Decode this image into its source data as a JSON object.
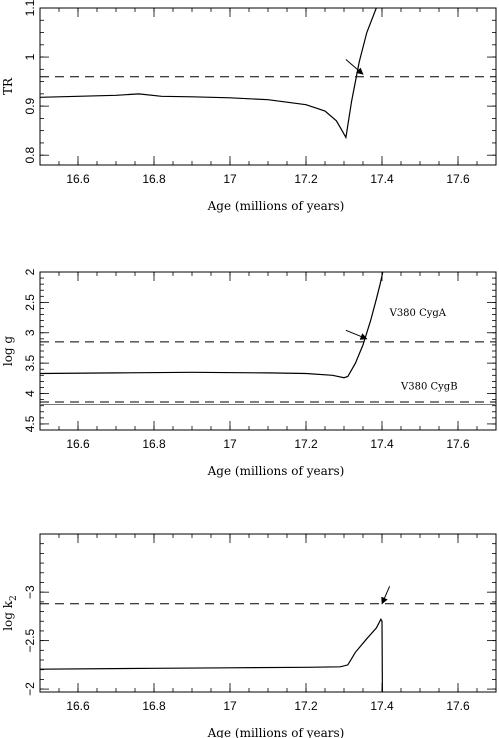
{
  "chart_data": [
    {
      "type": "line",
      "xlabel": "Age (millions of years)",
      "ylabel": "TR",
      "xlim": [
        16.5,
        17.7
      ],
      "ylim": [
        0.78,
        1.1
      ],
      "y_inverted": false,
      "xticks": [
        16.6,
        16.8,
        17,
        17.2,
        17.4,
        17.6
      ],
      "xtick_labels": [
        "16.6",
        "16.8",
        "17",
        "17.2",
        "17.4",
        "17.6"
      ],
      "yticks": [
        0.8,
        0.9,
        1,
        1.1
      ],
      "ytick_labels": [
        "0.8",
        "0.9",
        "1",
        "1.1"
      ],
      "x_minor_step": 0.05,
      "y_minor_step": 0.025,
      "series": [
        {
          "x": [
            16.5,
            16.6,
            16.7,
            16.76,
            16.82,
            16.9,
            17.0,
            17.1,
            17.2,
            17.25,
            17.28,
            17.295,
            17.305,
            17.32,
            17.34,
            17.36,
            17.385
          ],
          "y": [
            0.918,
            0.92,
            0.922,
            0.925,
            0.92,
            0.919,
            0.917,
            0.913,
            0.903,
            0.89,
            0.87,
            0.85,
            0.836,
            0.91,
            0.99,
            1.05,
            1.1
          ]
        }
      ],
      "reference_lines": [
        {
          "y": 0.96,
          "style": "dashed"
        }
      ],
      "annotations": [
        {
          "type": "arrow",
          "from": [
            17.305,
            0.995
          ],
          "to": [
            17.35,
            0.965
          ]
        }
      ]
    },
    {
      "type": "line",
      "xlabel": "Age (millions of years)",
      "ylabel": "log g",
      "xlim": [
        16.5,
        17.7
      ],
      "ylim": [
        4.6,
        2.0
      ],
      "y_inverted": true,
      "xticks": [
        16.6,
        16.8,
        17,
        17.2,
        17.4,
        17.6
      ],
      "xtick_labels": [
        "16.6",
        "16.8",
        "17",
        "17.2",
        "17.4",
        "17.6"
      ],
      "yticks": [
        2,
        2.5,
        3,
        3.5,
        4,
        4.5
      ],
      "ytick_labels": [
        "2",
        "2.5",
        "3",
        "3.5",
        "4",
        "4.5"
      ],
      "x_minor_step": 0.05,
      "y_minor_step": 0.1,
      "series": [
        {
          "x": [
            16.5,
            16.7,
            16.9,
            17.1,
            17.2,
            17.27,
            17.3,
            17.31,
            17.33,
            17.35,
            17.37,
            17.385,
            17.395,
            17.402
          ],
          "y": [
            3.67,
            3.66,
            3.65,
            3.66,
            3.67,
            3.7,
            3.74,
            3.72,
            3.5,
            3.2,
            2.8,
            2.45,
            2.2,
            2.0
          ]
        }
      ],
      "reference_lines": [
        {
          "y": 3.15,
          "style": "dashed"
        },
        {
          "y": 4.14,
          "style": "dashed"
        },
        {
          "y": 4.18,
          "style": "solid-gray"
        }
      ],
      "annotations": [
        {
          "type": "text",
          "text": "V380 CygA",
          "x": 17.42,
          "y": 2.72
        },
        {
          "type": "text",
          "text": "V380 CygB",
          "x": 17.45,
          "y": 3.93
        },
        {
          "type": "arrow",
          "from": [
            17.305,
            2.96
          ],
          "to": [
            17.36,
            3.1
          ]
        }
      ]
    },
    {
      "type": "line",
      "xlabel": "Age (millions of years)",
      "ylabel_main": "log k",
      "ylabel_sub": "2",
      "xlim": [
        16.5,
        17.7
      ],
      "ylim": [
        -1.97,
        -3.6
      ],
      "y_inverted": true,
      "xticks": [
        16.6,
        16.8,
        17,
        17.2,
        17.4,
        17.6
      ],
      "xtick_labels": [
        "16.6",
        "16.8",
        "17",
        "17.2",
        "17.4",
        "17.6"
      ],
      "yticks": [
        -2,
        -2.5,
        -3
      ],
      "ytick_labels": [
        "−2",
        "−2.5",
        "−3"
      ],
      "x_minor_step": 0.05,
      "y_minor_step": 0.1,
      "series": [
        {
          "x": [
            16.5,
            16.8,
            17.0,
            17.2,
            17.29,
            17.31,
            17.33,
            17.36,
            17.385,
            17.397,
            17.4,
            17.401
          ],
          "y": [
            -2.205,
            -2.215,
            -2.22,
            -2.225,
            -2.23,
            -2.25,
            -2.38,
            -2.52,
            -2.63,
            -2.72,
            -2.7,
            -1.97
          ]
        }
      ],
      "reference_lines": [
        {
          "y": -2.88,
          "style": "dashed"
        }
      ],
      "annotations": [
        {
          "type": "arrow",
          "from": [
            17.42,
            -3.06
          ],
          "to": [
            17.4,
            -2.88
          ]
        }
      ]
    }
  ]
}
